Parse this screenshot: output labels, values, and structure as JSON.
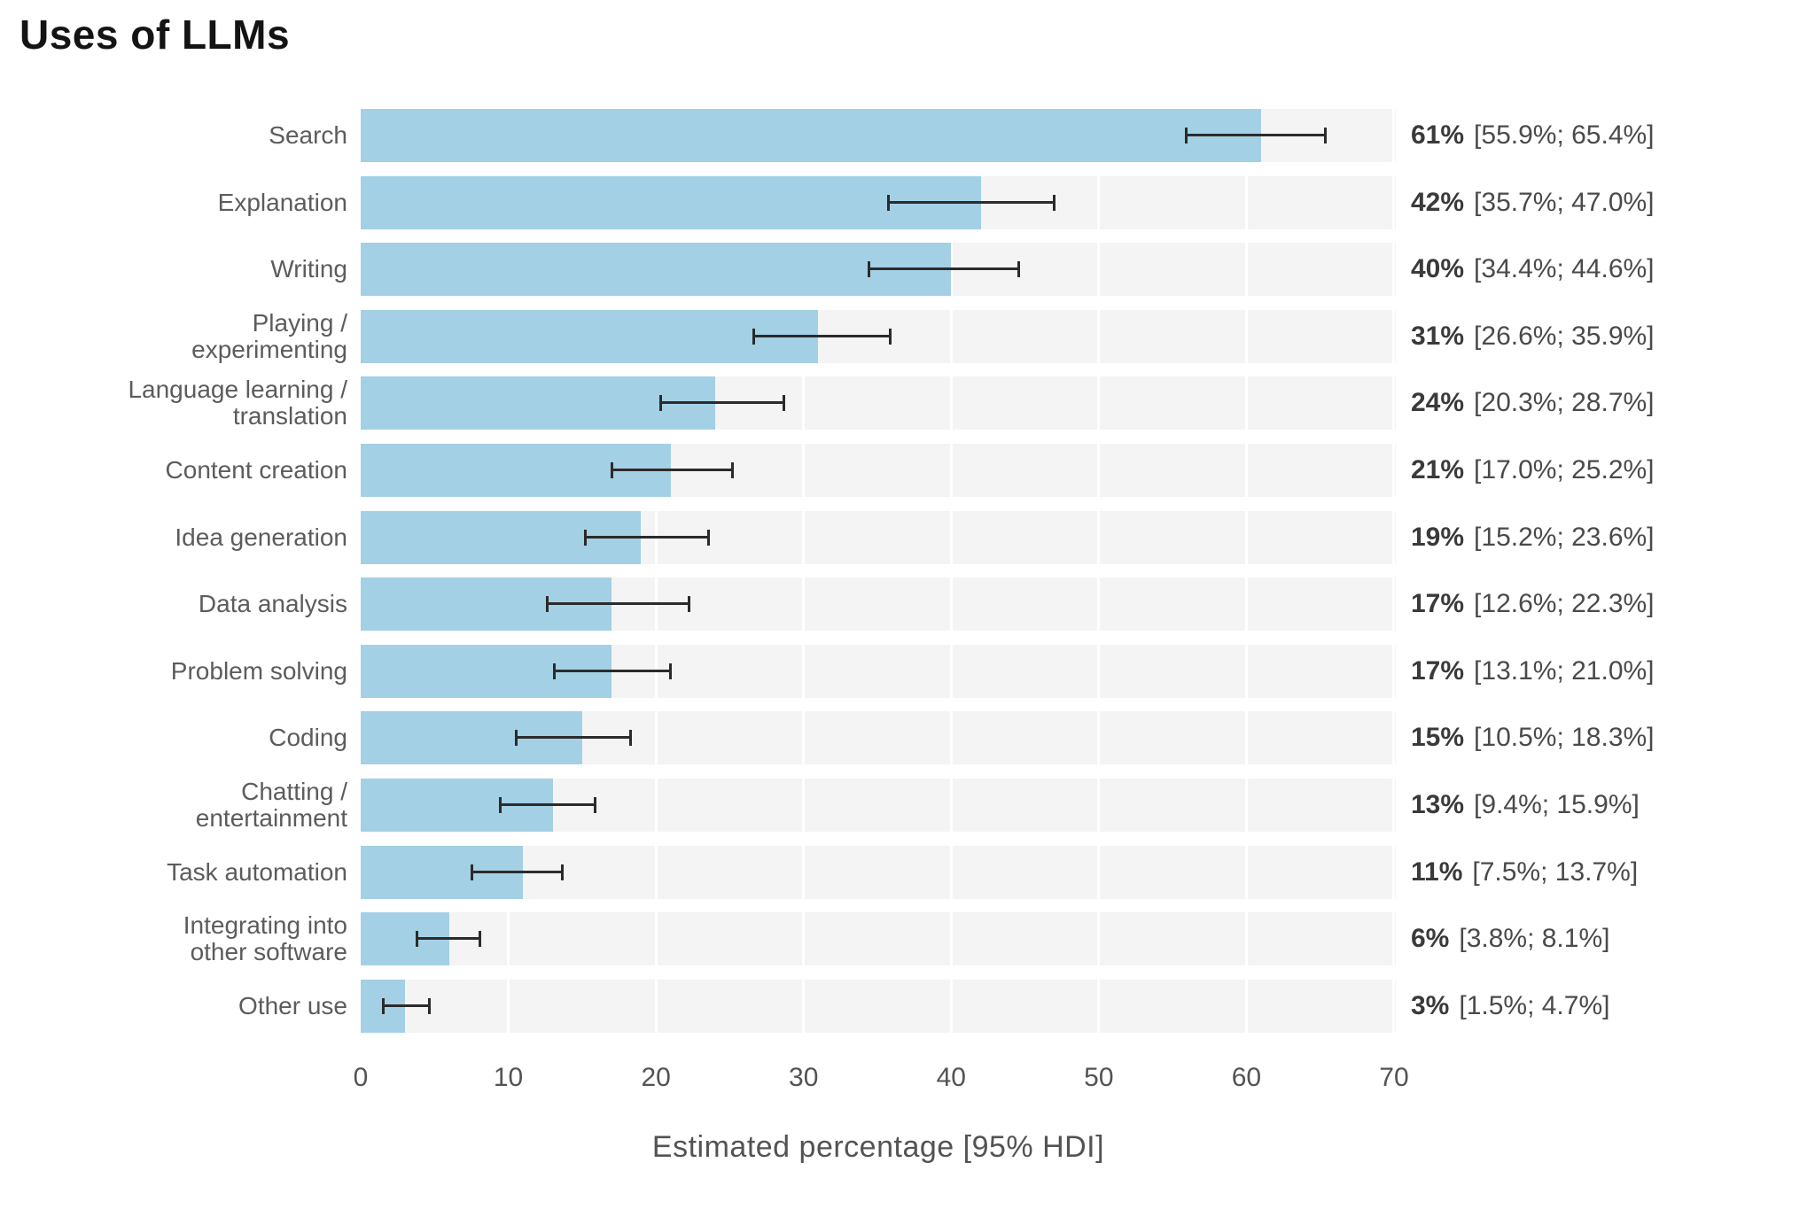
{
  "title": "Uses of LLMs",
  "x_axis": {
    "label": "Estimated percentage [95% HDI]"
  },
  "colors": {
    "bar": "#9ecde4",
    "row_bg": "#f4f4f4",
    "gridline": "#ffffff",
    "error_bar": "#2b2b2b",
    "title_text": "#141414",
    "category_text": "#5c5c5c",
    "value_text": "#3a3a3a",
    "axis_text": "#535353"
  },
  "chart_data": {
    "type": "bar",
    "orientation": "horizontal",
    "title": "Uses of LLMs",
    "xlabel": "Estimated percentage [95% HDI]",
    "xlim": [
      0,
      70
    ],
    "x_ticks": [
      0,
      10,
      20,
      30,
      40,
      50,
      60,
      70
    ],
    "grid": "white vertical gridlines over light-gray row backgrounds",
    "legend": "none",
    "categories": [
      "Search",
      "Explanation",
      "Writing",
      "Playing / experimenting",
      "Language learning / translation",
      "Content creation",
      "Idea generation",
      "Data analysis",
      "Problem solving",
      "Coding",
      "Chatting / entertainment",
      "Task automation",
      "Integrating into other software",
      "Other use"
    ],
    "label_lines": [
      [
        "Search"
      ],
      [
        "Explanation"
      ],
      [
        "Writing"
      ],
      [
        "Playing /",
        "experimenting"
      ],
      [
        "Language learning /",
        "translation"
      ],
      [
        "Content creation"
      ],
      [
        "Idea generation"
      ],
      [
        "Data analysis"
      ],
      [
        "Problem solving"
      ],
      [
        "Coding"
      ],
      [
        "Chatting /",
        "entertainment"
      ],
      [
        "Task automation"
      ],
      [
        "Integrating into",
        "other software"
      ],
      [
        "Other use"
      ]
    ],
    "values": [
      61,
      42,
      40,
      31,
      24,
      21,
      19,
      17,
      17,
      15,
      13,
      11,
      6,
      3
    ],
    "ci95_low": [
      55.9,
      35.7,
      34.4,
      26.6,
      20.3,
      17.0,
      15.2,
      12.6,
      13.1,
      10.5,
      9.4,
      7.5,
      3.8,
      1.5
    ],
    "ci95_high": [
      65.4,
      47.0,
      44.6,
      35.9,
      28.7,
      25.2,
      23.6,
      22.3,
      21.0,
      18.3,
      15.9,
      13.7,
      8.1,
      4.7
    ],
    "value_labels": [
      "61%",
      "42%",
      "40%",
      "31%",
      "24%",
      "21%",
      "19%",
      "17%",
      "17%",
      "15%",
      "13%",
      "11%",
      "6%",
      "3%"
    ],
    "ci_labels": [
      "[55.9%; 65.4%]",
      "[35.7%; 47.0%]",
      "[34.4%; 44.6%]",
      "[26.6%; 35.9%]",
      "[20.3%; 28.7%]",
      "[17.0%; 25.2%]",
      "[15.2%; 23.6%]",
      "[12.6%; 22.3%]",
      "[13.1%; 21.0%]",
      "[10.5%; 18.3%]",
      "[9.4%; 15.9%]",
      "[7.5%; 13.7%]",
      "[3.8%; 8.1%]",
      "[1.5%; 4.7%]"
    ]
  }
}
